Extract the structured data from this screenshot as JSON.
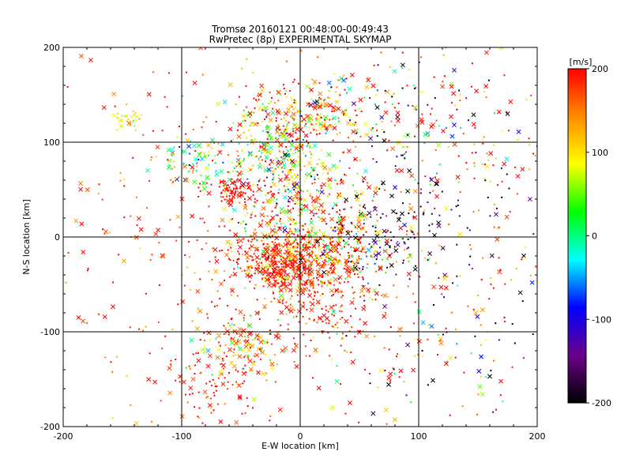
{
  "chart_data": {
    "type": "scatter",
    "title": "Tromsø 20160121 00:48:00-00:49:43",
    "subtitle": "RwPretec (8p) EXPERIMENTAL SKYMAP",
    "xlabel": "E-W location [km]",
    "ylabel": "N-S location [km]",
    "xlim": [
      -200,
      200
    ],
    "ylim": [
      -200,
      200
    ],
    "x_ticks": [
      "-200",
      "-100",
      "0",
      "100",
      "200"
    ],
    "y_ticks": [
      "-200",
      "-100",
      "0",
      "100",
      "200"
    ],
    "grid": true,
    "gridlines": [
      -100,
      0,
      100
    ],
    "colorbar": {
      "unit": "[m/s]",
      "range": [
        -200,
        200
      ],
      "ticks": [
        "200",
        "100",
        "0",
        "-100",
        "-200"
      ],
      "colors": [
        "#000000",
        "#6a008a",
        "#0000ff",
        "#00ffff",
        "#00ff00",
        "#ffff00",
        "#ff8c00",
        "#ff0000"
      ]
    },
    "markers": [
      {
        "shape": "small-dot",
        "meaning": "detection"
      },
      {
        "shape": "x",
        "meaning": "detection"
      }
    ],
    "clusters": [
      {
        "center": [
          0,
          -20
        ],
        "spread": [
          35,
          20
        ],
        "count": 520,
        "velocity_mean": 170,
        "velocity_spread": 70
      },
      {
        "center": [
          -20,
          -30
        ],
        "spread": [
          15,
          15
        ],
        "count": 170,
        "velocity_mean": 195,
        "velocity_spread": 20
      },
      {
        "center": [
          -5,
          125
        ],
        "spread": [
          30,
          20
        ],
        "count": 260,
        "velocity_mean": 120,
        "velocity_spread": 90
      },
      {
        "center": [
          -20,
          85
        ],
        "spread": [
          25,
          22
        ],
        "count": 170,
        "velocity_mean": 70,
        "velocity_spread": 100
      },
      {
        "center": [
          -5,
          35
        ],
        "spread": [
          30,
          25
        ],
        "count": 220,
        "velocity_mean": 110,
        "velocity_spread": 110
      },
      {
        "center": [
          -55,
          50
        ],
        "spread": [
          10,
          8
        ],
        "count": 70,
        "velocity_mean": 200,
        "velocity_spread": 8
      },
      {
        "center": [
          -90,
          80
        ],
        "spread": [
          15,
          12
        ],
        "count": 70,
        "velocity_mean": 40,
        "velocity_spread": 90
      },
      {
        "center": [
          -145,
          122
        ],
        "spread": [
          6,
          6
        ],
        "count": 30,
        "velocity_mean": 100,
        "velocity_spread": 25
      },
      {
        "center": [
          -50,
          -115
        ],
        "spread": [
          18,
          18
        ],
        "count": 130,
        "velocity_mean": 150,
        "velocity_spread": 90
      },
      {
        "center": [
          -70,
          -150
        ],
        "spread": [
          20,
          25
        ],
        "count": 80,
        "velocity_mean": 190,
        "velocity_spread": 30
      },
      {
        "center": [
          80,
          20
        ],
        "spread": [
          45,
          40
        ],
        "count": 140,
        "velocity_mean": -180,
        "velocity_spread": 40
      },
      {
        "center": [
          50,
          -15
        ],
        "spread": [
          30,
          20
        ],
        "count": 110,
        "velocity_mean": -60,
        "velocity_spread": 150
      },
      {
        "center": [
          15,
          -60
        ],
        "spread": [
          20,
          30
        ],
        "count": 160,
        "velocity_mean": 190,
        "velocity_spread": 25
      },
      {
        "center": [
          0,
          0
        ],
        "spread": [
          120,
          110
        ],
        "count": 650,
        "velocity_mean": 180,
        "velocity_spread": 50
      },
      {
        "center": [
          60,
          130
        ],
        "spread": [
          40,
          40
        ],
        "count": 80,
        "velocity_mean": 60,
        "velocity_spread": 200
      },
      {
        "center": [
          140,
          110
        ],
        "spread": [
          45,
          40
        ],
        "count": 100,
        "velocity_mean": 120,
        "velocity_spread": 160
      },
      {
        "center": [
          100,
          -130
        ],
        "spread": [
          50,
          40
        ],
        "count": 70,
        "velocity_mean": 50,
        "velocity_spread": 200
      },
      {
        "center": [
          150,
          -100
        ],
        "spread": [
          40,
          60
        ],
        "count": 40,
        "velocity_mean": 0,
        "velocity_spread": 200
      }
    ]
  }
}
